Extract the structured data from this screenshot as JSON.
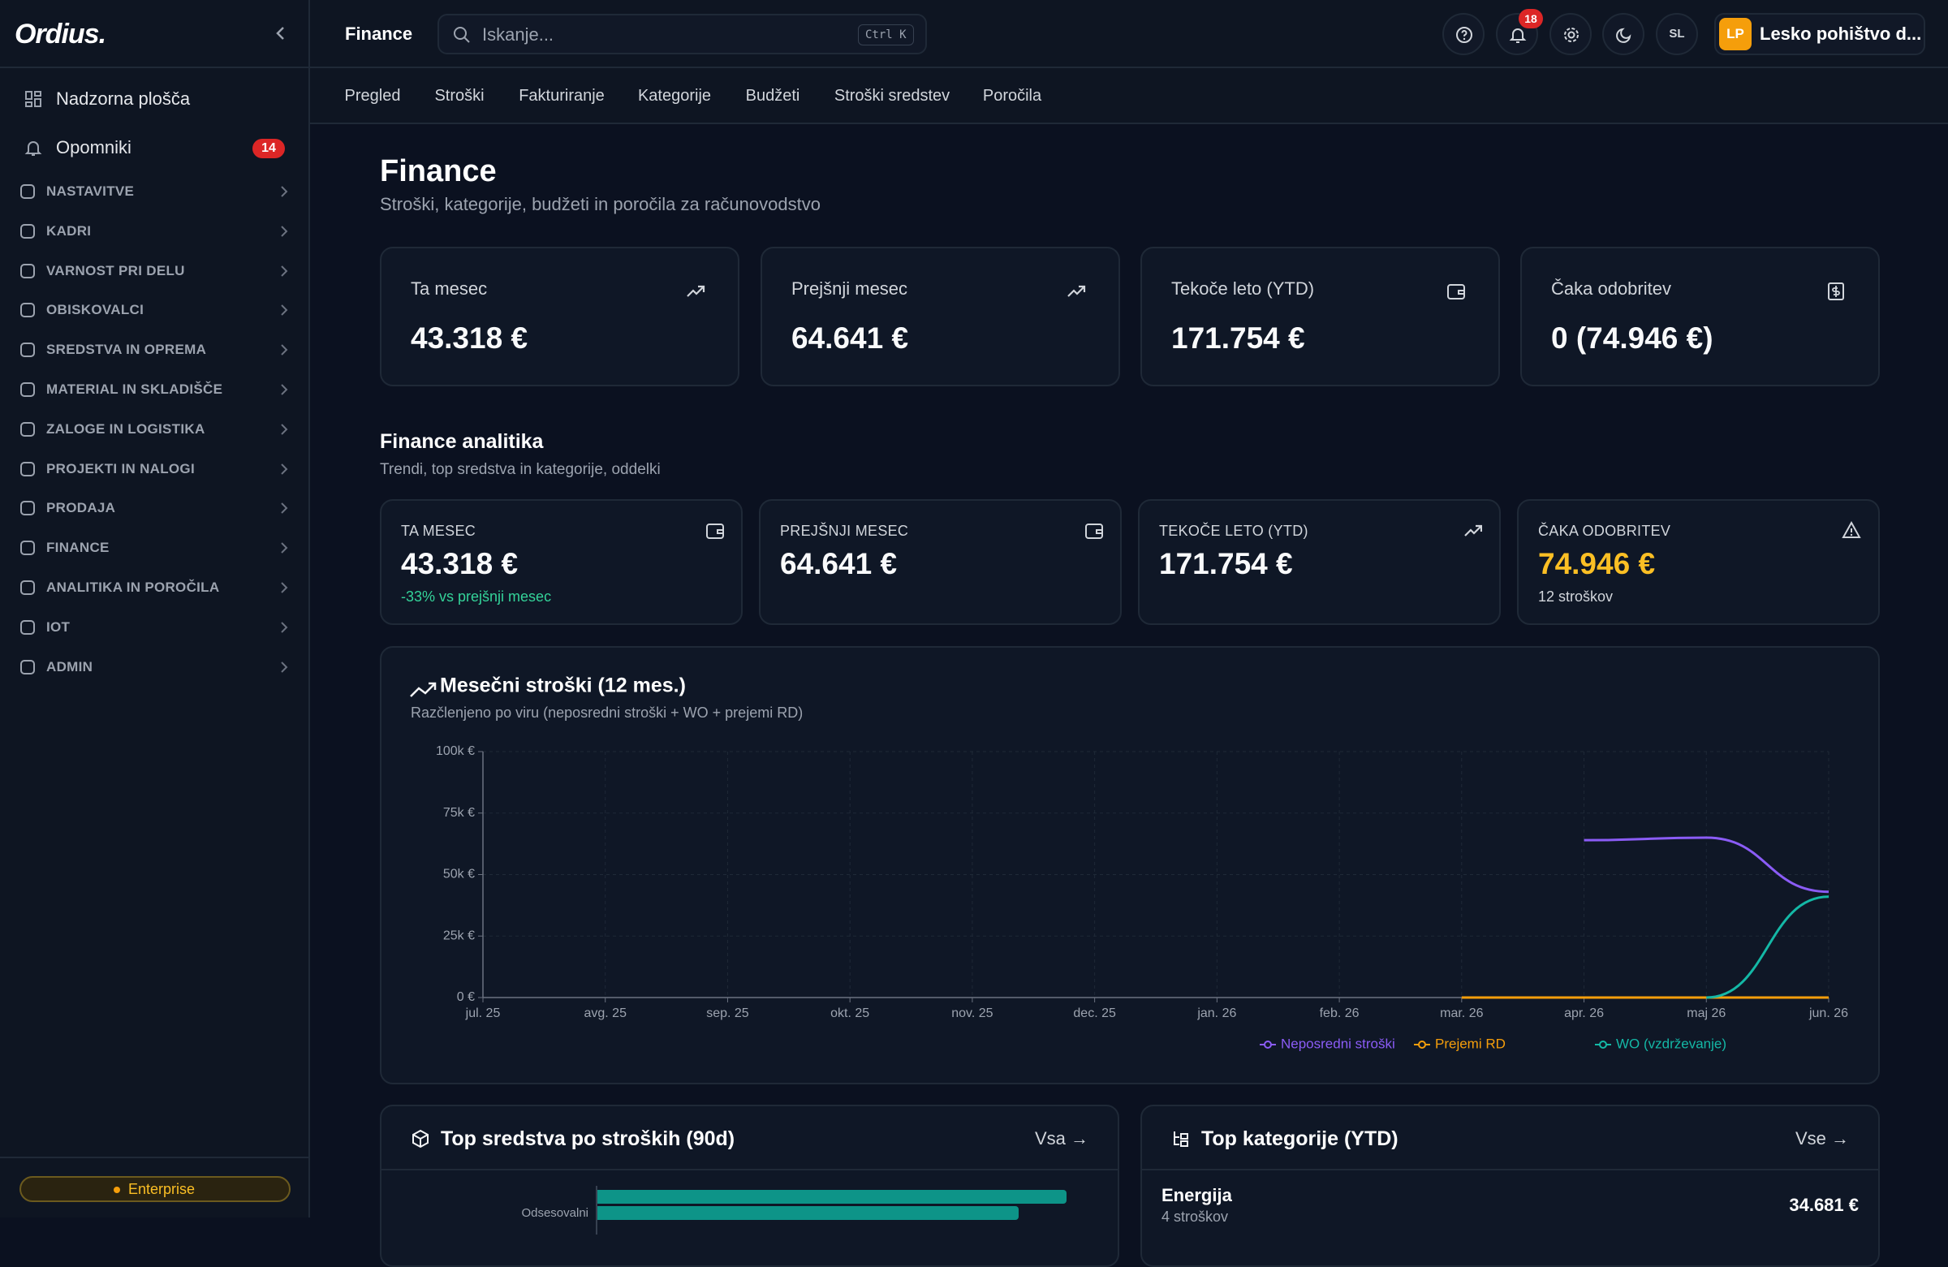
{
  "sidebar": {
    "logo": "Ordius.",
    "nav": [
      {
        "label": "Nadzorna plošča"
      },
      {
        "label": "Opomniki",
        "badge": "14"
      }
    ],
    "sections": [
      "NASTAVITVE",
      "KADRI",
      "VARNOST PRI DELU",
      "OBISKOVALCI",
      "SREDSTVA IN OPREMA",
      "MATERIAL IN SKLADIŠČE",
      "ZALOGE IN LOGISTIKA",
      "PROJEKTI IN NALOGI",
      "PRODAJA",
      "FINANCE",
      "ANALITIKA IN POROČILA",
      "IOT",
      "ADMIN"
    ],
    "plan": "Enterprise"
  },
  "topbar": {
    "title": "Finance",
    "search_placeholder": "Iskanje...",
    "shortcut": "Ctrl K",
    "notifications": "18",
    "language": "SL",
    "org_initials": "LP",
    "org_name": "Lesko pohištvo d..."
  },
  "tabs": [
    "Pregled",
    "Stroški",
    "Fakturiranje",
    "Kategorije",
    "Budžeti",
    "Stroški sredstev",
    "Poročila"
  ],
  "header": {
    "title": "Finance",
    "subtitle": "Stroški, kategorije, budžeti in poročila za računovodstvo"
  },
  "kpis": [
    {
      "label": "Ta mesec",
      "value": "43.318 €"
    },
    {
      "label": "Prejšnji mesec",
      "value": "64.641 €"
    },
    {
      "label": "Tekoče leto (YTD)",
      "value": "171.754 €"
    },
    {
      "label": "Čaka odobritev",
      "value": "0 (74.946 €)"
    }
  ],
  "analytics": {
    "title": "Finance analitika",
    "subtitle": "Trendi, top sredstva in kategorije, oddelki",
    "cards": [
      {
        "label": "TA MESEC",
        "value": "43.318 €",
        "note": "-33% vs prejšnji mesec"
      },
      {
        "label": "PREJŠNJI MESEC",
        "value": "64.641 €"
      },
      {
        "label": "TEKOČE LETO (YTD)",
        "value": "171.754 €"
      },
      {
        "label": "ČAKA ODOBRITEV",
        "value": "74.946 €",
        "note": "12 stroškov"
      }
    ]
  },
  "chart_data": {
    "type": "line",
    "title": "Mesečni stroški (12 mes.)",
    "subtitle": "Razčlenjeno po viru (neposredni stroški + WO + prejemi RD)",
    "categories": [
      "jul. 25",
      "avg. 25",
      "sep. 25",
      "okt. 25",
      "nov. 25",
      "dec. 25",
      "jan. 26",
      "feb. 26",
      "mar. 26",
      "apr. 26",
      "maj 26",
      "jun. 26"
    ],
    "series": [
      {
        "name": "Neposredni stroški",
        "color": "#8b5cf6",
        "values": [
          null,
          null,
          null,
          null,
          null,
          null,
          null,
          null,
          null,
          64000,
          65000,
          43000
        ]
      },
      {
        "name": "Prejemi RD",
        "color": "#f59e0b",
        "values": [
          null,
          null,
          null,
          null,
          null,
          null,
          null,
          null,
          0,
          0,
          0,
          0
        ]
      },
      {
        "name": "WO (vzdrževanje)",
        "color": "#14b8a6",
        "values": [
          null,
          null,
          null,
          null,
          null,
          null,
          null,
          null,
          null,
          null,
          0,
          41000
        ]
      }
    ],
    "ylim": [
      0,
      100000
    ],
    "yticks": [
      {
        "value": 0,
        "label": "0 €"
      },
      {
        "value": 25000,
        "label": "25k €"
      },
      {
        "value": 50000,
        "label": "50k €"
      },
      {
        "value": 75000,
        "label": "75k €"
      },
      {
        "value": 100000,
        "label": "100k €"
      }
    ],
    "grid": true,
    "legend": "bottom"
  },
  "assets_panel": {
    "title": "Top sredstva po stroških (90d)",
    "link": "Vsa →",
    "labels": [
      "Odsesovalni"
    ]
  },
  "categories_panel": {
    "title": "Top kategorije (YTD)",
    "link": "Vse →",
    "items": [
      {
        "name": "Energija",
        "count": "4 stroškov",
        "amount": "34.681 €"
      }
    ]
  }
}
